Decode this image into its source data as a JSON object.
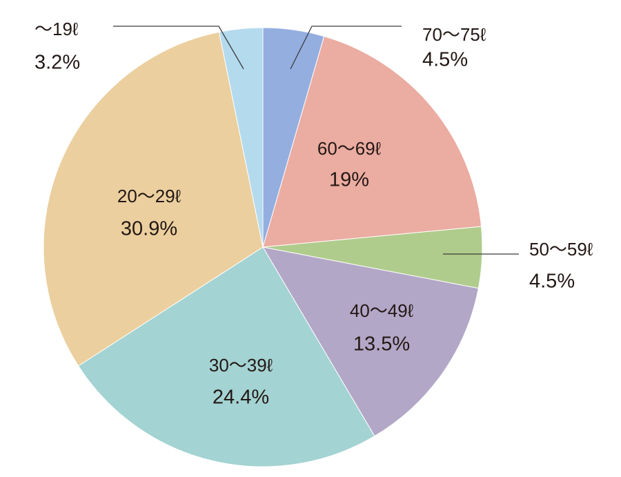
{
  "chart_data": {
    "type": "pie",
    "start": "12 o'clock",
    "direction": "clockwise",
    "slices": [
      {
        "label": "70〜75ℓ",
        "value": 4.5,
        "pct_label": "4.5%",
        "color": "#94aee0",
        "label_outside": true
      },
      {
        "label": "60〜69ℓ",
        "value": 19,
        "pct_label": "19%",
        "color": "#ebaca1",
        "label_outside": false
      },
      {
        "label": "50〜59ℓ",
        "value": 4.5,
        "pct_label": "4.5%",
        "color": "#b0cc8c",
        "label_outside": true
      },
      {
        "label": "40〜49ℓ",
        "value": 13.5,
        "pct_label": "13.5%",
        "color": "#b3a7c7",
        "label_outside": false
      },
      {
        "label": "30〜39ℓ",
        "value": 24.4,
        "pct_label": "24.4%",
        "color": "#a3d3d2",
        "label_outside": false
      },
      {
        "label": "20〜29ℓ",
        "value": 30.9,
        "pct_label": "30.9%",
        "color": "#ebcf9e",
        "label_outside": false
      },
      {
        "label": "〜19ℓ",
        "value": 3.2,
        "pct_label": "3.2%",
        "color": "#b4daed",
        "label_outside": true
      }
    ]
  }
}
